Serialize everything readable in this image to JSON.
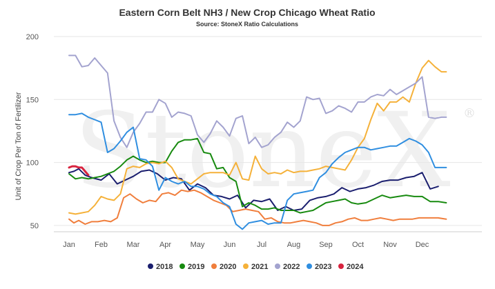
{
  "chart_data": {
    "type": "line",
    "title": "Eastern Corn Belt NH3 / New Crop Chicago Wheat Ratio",
    "subtitle": "Source: StoneX Ratio Calculations",
    "ylabel": "Unit of Crop Per Ton of Fertilizer",
    "xlabel": "",
    "watermark": "StoneX",
    "watermark_mark": "®",
    "ylim": [
      45,
      200
    ],
    "yticks": [
      50,
      100,
      150,
      200
    ],
    "x_tick_labels": [
      "Jan",
      "Feb",
      "Mar",
      "Apr",
      "May",
      "Jun",
      "Jul",
      "Aug",
      "Sep",
      "Oct",
      "Nov",
      "Dec"
    ],
    "x_unit": "month (1 = Jan)",
    "grid": true,
    "legend_position": "bottom",
    "series": [
      {
        "name": "2018",
        "color": "#1a1e6e",
        "x": [
          1.0,
          1.15,
          1.3,
          1.5,
          1.7,
          2.0,
          2.25,
          2.5,
          2.75,
          3.0,
          3.25,
          3.5,
          3.75,
          4.0,
          4.25,
          4.5,
          4.75,
          5.0,
          5.25,
          5.5,
          5.75,
          6.0,
          6.25,
          6.5,
          6.75,
          7.0,
          7.25,
          7.5,
          7.75,
          8.0,
          8.25,
          8.5,
          8.75,
          9.0,
          9.25,
          9.5,
          9.75,
          10.0,
          10.25,
          10.5,
          10.75,
          11.0,
          11.25,
          11.5,
          11.75,
          12.0,
          12.25,
          12.5
        ],
        "y": [
          92,
          93,
          95,
          90,
          88,
          86,
          91,
          83,
          86,
          89,
          93,
          94,
          91,
          86,
          88,
          87,
          78,
          83,
          80,
          74,
          73,
          71,
          74,
          64,
          70,
          69,
          71,
          62,
          65,
          62,
          63,
          70,
          72,
          73,
          75,
          80,
          77,
          79,
          80,
          82,
          85,
          86,
          86,
          88,
          89,
          92,
          79,
          81
        ]
      },
      {
        "name": "2019",
        "color": "#178a0f",
        "x": [
          1.0,
          1.2,
          1.4,
          1.6,
          1.8,
          2.0,
          2.2,
          2.4,
          2.6,
          2.8,
          3.0,
          3.2,
          3.4,
          3.6,
          3.8,
          4.0,
          4.2,
          4.4,
          4.6,
          4.8,
          5.0,
          5.2,
          5.4,
          5.6,
          5.8,
          6.0,
          6.2,
          6.4,
          6.6,
          6.8,
          7.0,
          7.2,
          7.4,
          7.6,
          7.8,
          8.0,
          8.2,
          8.4,
          8.6,
          8.8,
          9.0,
          9.2,
          9.4,
          9.6,
          9.8,
          10.0,
          10.25,
          10.5,
          10.75,
          11.0,
          11.25,
          11.5,
          11.75,
          12.0,
          12.25,
          12.5,
          12.75
        ],
        "y": [
          91,
          87,
          88,
          87,
          88,
          89,
          91,
          93,
          97,
          102,
          105,
          102,
          100,
          101,
          100,
          100,
          109,
          116,
          118,
          118,
          119,
          108,
          107,
          95,
          96,
          88,
          85,
          65,
          68,
          66,
          63,
          63,
          64,
          62,
          62,
          62,
          60,
          61,
          62,
          65,
          68,
          69,
          70,
          71,
          68,
          67,
          68,
          71,
          74,
          72,
          73,
          74,
          73,
          73,
          69,
          69,
          68
        ]
      },
      {
        "name": "2020",
        "color": "#f07e3c",
        "x": [
          1.0,
          1.15,
          1.3,
          1.5,
          1.7,
          1.9,
          2.1,
          2.3,
          2.5,
          2.7,
          2.9,
          3.1,
          3.3,
          3.5,
          3.7,
          3.9,
          4.1,
          4.3,
          4.5,
          4.7,
          4.9,
          5.1,
          5.3,
          5.5,
          5.7,
          5.9,
          6.1,
          6.3,
          6.5,
          6.7,
          6.9,
          7.1,
          7.3,
          7.5,
          7.7,
          7.9,
          8.1,
          8.3,
          8.5,
          8.7,
          8.9,
          9.1,
          9.3,
          9.5,
          9.7,
          9.9,
          10.1,
          10.3,
          10.5,
          10.7,
          10.9,
          11.1,
          11.3,
          11.5,
          11.7,
          11.9,
          12.1,
          12.3,
          12.5,
          12.75
        ],
        "y": [
          55,
          52,
          54,
          51,
          53,
          53,
          54,
          53,
          56,
          72,
          75,
          71,
          68,
          70,
          69,
          75,
          76,
          74,
          78,
          77,
          78,
          76,
          73,
          70,
          68,
          66,
          61,
          62,
          63,
          62,
          61,
          55,
          56,
          53,
          52,
          52,
          53,
          54,
          53,
          52,
          50,
          50,
          52,
          53,
          55,
          56,
          54,
          54,
          55,
          56,
          55,
          54,
          55,
          55,
          55,
          56,
          56,
          56,
          56,
          55
        ]
      },
      {
        "name": "2021",
        "color": "#f5b139",
        "x": [
          1.0,
          1.2,
          1.4,
          1.6,
          1.8,
          2.0,
          2.2,
          2.4,
          2.6,
          2.8,
          3.0,
          3.2,
          3.4,
          3.6,
          3.8,
          4.0,
          4.2,
          4.4,
          4.6,
          4.8,
          5.0,
          5.2,
          5.4,
          5.6,
          5.8,
          6.0,
          6.2,
          6.4,
          6.6,
          6.8,
          7.0,
          7.2,
          7.4,
          7.6,
          7.8,
          8.0,
          8.2,
          8.4,
          8.6,
          8.8,
          9.0,
          9.2,
          9.4,
          9.6,
          9.8,
          10.0,
          10.2,
          10.4,
          10.6,
          10.8,
          11.0,
          11.2,
          11.4,
          11.6,
          11.8,
          12.0,
          12.2,
          12.4,
          12.6,
          12.75
        ],
        "y": [
          60,
          59,
          60,
          61,
          66,
          73,
          71,
          70,
          75,
          95,
          97,
          96,
          99,
          100,
          99,
          101,
          96,
          87,
          85,
          83,
          87,
          91,
          92,
          92,
          92,
          90,
          100,
          87,
          86,
          105,
          95,
          91,
          92,
          91,
          94,
          92,
          93,
          93,
          94,
          95,
          97,
          96,
          95,
          94,
          102,
          112,
          119,
          134,
          147,
          141,
          148,
          148,
          152,
          148,
          163,
          175,
          181,
          176,
          172,
          172
        ]
      },
      {
        "name": "2022",
        "color": "#a3a3cf",
        "x": [
          1.0,
          1.2,
          1.4,
          1.6,
          1.8,
          2.0,
          2.2,
          2.4,
          2.6,
          2.8,
          3.0,
          3.2,
          3.4,
          3.6,
          3.8,
          4.0,
          4.2,
          4.4,
          4.6,
          4.8,
          5.0,
          5.2,
          5.4,
          5.6,
          5.8,
          6.0,
          6.2,
          6.4,
          6.6,
          6.8,
          7.0,
          7.2,
          7.4,
          7.6,
          7.8,
          8.0,
          8.2,
          8.4,
          8.6,
          8.8,
          9.0,
          9.2,
          9.4,
          9.6,
          9.8,
          10.0,
          10.2,
          10.4,
          10.6,
          10.8,
          11.0,
          11.2,
          11.4,
          11.6,
          11.8,
          12.0,
          12.2,
          12.4,
          12.6,
          12.75
        ],
        "y": [
          185,
          185,
          176,
          177,
          183,
          177,
          171,
          133,
          120,
          112,
          124,
          131,
          140,
          140,
          150,
          147,
          136,
          140,
          139,
          137,
          122,
          116,
          123,
          133,
          128,
          121,
          135,
          137,
          115,
          120,
          112,
          114,
          120,
          124,
          132,
          128,
          133,
          152,
          150,
          151,
          139,
          141,
          145,
          143,
          140,
          148,
          148,
          152,
          154,
          153,
          158,
          154,
          157,
          160,
          163,
          168,
          136,
          135,
          136,
          136
        ]
      },
      {
        "name": "2023",
        "color": "#2f8ee0",
        "x": [
          1.0,
          1.2,
          1.4,
          1.6,
          1.8,
          2.0,
          2.2,
          2.4,
          2.6,
          2.8,
          3.0,
          3.2,
          3.4,
          3.6,
          3.8,
          4.0,
          4.2,
          4.4,
          4.6,
          4.8,
          5.0,
          5.2,
          5.4,
          5.6,
          5.8,
          6.0,
          6.2,
          6.4,
          6.6,
          6.8,
          7.0,
          7.2,
          7.4,
          7.6,
          7.8,
          8.0,
          8.2,
          8.4,
          8.6,
          8.8,
          9.0,
          9.2,
          9.4,
          9.6,
          9.8,
          10.0,
          10.2,
          10.4,
          10.6,
          10.8,
          11.0,
          11.2,
          11.4,
          11.6,
          11.8,
          12.0,
          12.2,
          12.4,
          12.6,
          12.75
        ],
        "y": [
          138,
          138,
          139,
          136,
          134,
          132,
          108,
          111,
          117,
          124,
          128,
          103,
          102,
          97,
          78,
          88,
          85,
          83,
          85,
          81,
          81,
          79,
          75,
          73,
          68,
          65,
          51,
          47,
          52,
          53,
          54,
          51,
          52,
          52,
          70,
          75,
          76,
          77,
          78,
          88,
          92,
          99,
          104,
          108,
          110,
          112,
          112,
          110,
          111,
          112,
          113,
          113,
          116,
          119,
          117,
          114,
          108,
          96,
          96,
          96
        ]
      },
      {
        "name": "2024",
        "color": "#d8233e",
        "x": [
          1.0,
          1.1,
          1.2,
          1.3,
          1.4,
          1.5,
          1.6
        ],
        "y": [
          96,
          97,
          97,
          96,
          96,
          93,
          90
        ]
      }
    ]
  }
}
